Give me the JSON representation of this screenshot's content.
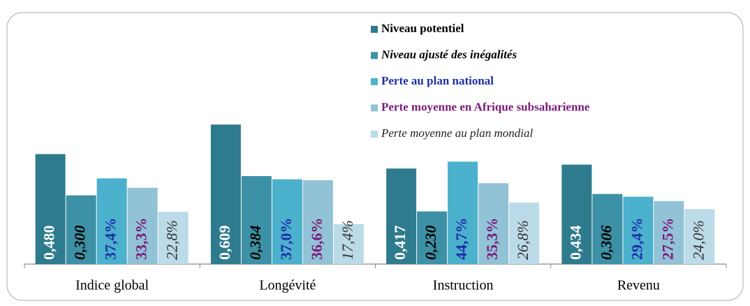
{
  "chart_data": {
    "type": "bar",
    "categories": [
      "Indice global",
      "Longévité",
      "Instruction",
      "Revenu"
    ],
    "series": [
      {
        "name": "Niveau potentiel",
        "color": "#2f7b8e",
        "values": [
          0.48,
          0.609,
          0.417,
          0.434
        ],
        "value_labels": [
          "0,480",
          "0,609",
          "0,417",
          "0,434"
        ]
      },
      {
        "name": "Niveau ajusté des inégalités",
        "color": "#3d91a6",
        "values": [
          0.3,
          0.384,
          0.23,
          0.306
        ],
        "value_labels": [
          "0,300",
          "0,384",
          "0,230",
          "0,306"
        ]
      },
      {
        "name": "Perte au plan national",
        "color": "#4bb1cd",
        "axis": "y2",
        "values": [
          37.4,
          37.0,
          44.7,
          29.4
        ],
        "value_labels": [
          "37,4%",
          "37,0%",
          "44,7%",
          "29,4%"
        ]
      },
      {
        "name": "Perte moyenne en Afrique subsaharienne",
        "color": "#92c2d6",
        "axis": "y2",
        "values": [
          33.3,
          36.6,
          35.3,
          27.5
        ],
        "value_labels": [
          "33,3%",
          "36,6%",
          "35,3%",
          "27,5%"
        ]
      },
      {
        "name": "Perte moyenne au plan mondial",
        "color": "#bcdbe8",
        "axis": "y2",
        "values": [
          22.8,
          17.4,
          26.8,
          24.0
        ],
        "value_labels": [
          "22,8%",
          "17,4%",
          "26,8%",
          "24,0%"
        ]
      }
    ],
    "ylim": [
      0,
      1
    ],
    "y2lim": [
      0,
      100
    ]
  }
}
